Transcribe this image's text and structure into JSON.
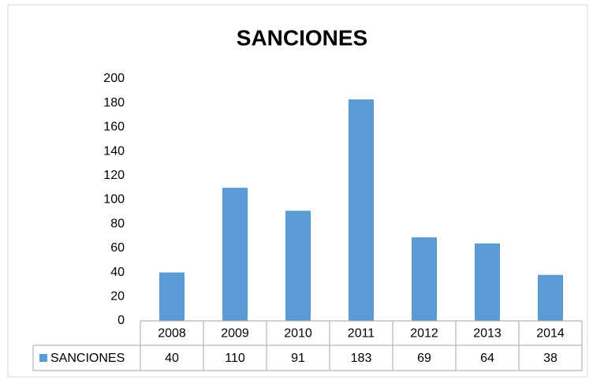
{
  "chart_data": {
    "type": "bar",
    "title": "SANCIONES",
    "categories": [
      "2008",
      "2009",
      "2010",
      "2011",
      "2012",
      "2013",
      "2014"
    ],
    "series": [
      {
        "name": "SANCIONES",
        "color": "#5b9bd5",
        "values": [
          40,
          110,
          91,
          183,
          69,
          64,
          38
        ]
      }
    ],
    "ylim": [
      0,
      200
    ],
    "yticks": [
      0,
      20,
      40,
      60,
      80,
      100,
      120,
      140,
      160,
      180,
      200
    ],
    "grid": false,
    "data_table": true
  }
}
